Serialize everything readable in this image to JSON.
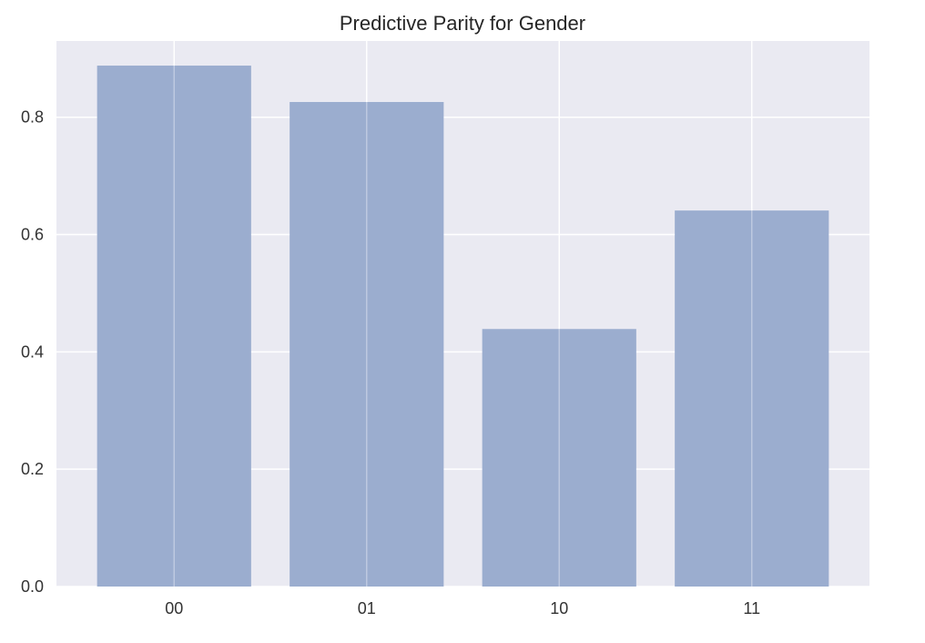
{
  "chart_data": {
    "type": "bar",
    "title": "Predictive Parity for Gender",
    "xlabel": "",
    "ylabel": "",
    "categories": [
      "00",
      "01",
      "10",
      "11"
    ],
    "values": [
      0.888,
      0.826,
      0.439,
      0.641
    ],
    "ylim": [
      0,
      0.93
    ],
    "yticks": [
      0.0,
      0.2,
      0.4,
      0.6,
      0.8
    ],
    "ytick_labels": [
      "0.0",
      "0.2",
      "0.4",
      "0.6",
      "0.8"
    ],
    "grid": true,
    "legend": "none",
    "colors": {
      "bar": "#9badcf",
      "plot_background": "#eaeaf2",
      "grid": "#ffffff"
    }
  }
}
